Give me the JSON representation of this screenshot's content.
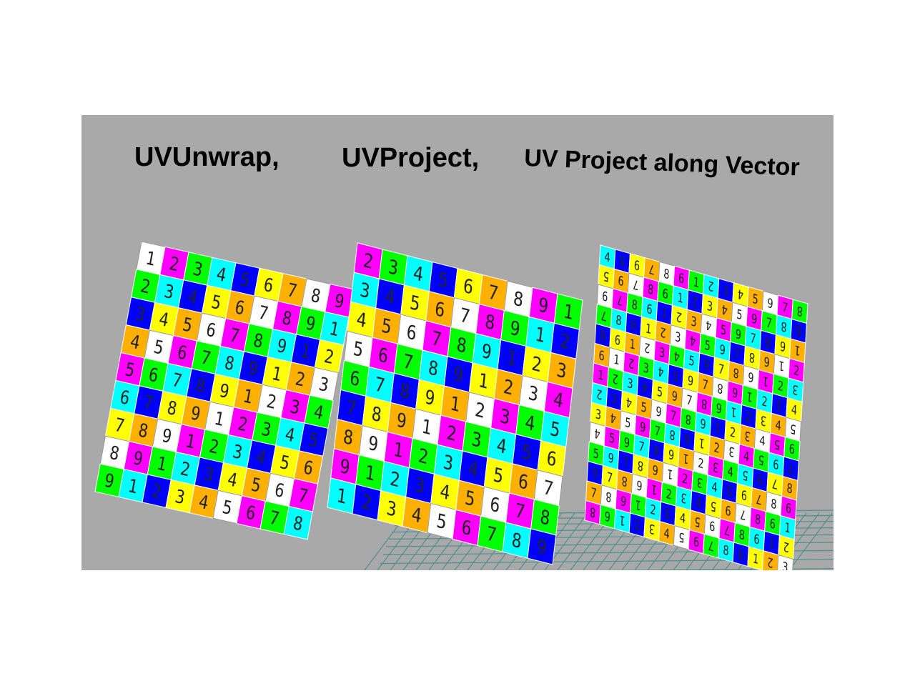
{
  "labels": [
    "UVUnwrap,",
    "UVProject,",
    "UV Project along Vector"
  ],
  "texture": {
    "digits": [
      "1",
      "2",
      "3",
      "4",
      "5",
      "6",
      "7",
      "8",
      "9"
    ],
    "colors": [
      "#ffffff",
      "#ff00ff",
      "#00ff00",
      "#00ffff",
      "#0000ff",
      "#ffff00",
      "#ffb000"
    ]
  }
}
